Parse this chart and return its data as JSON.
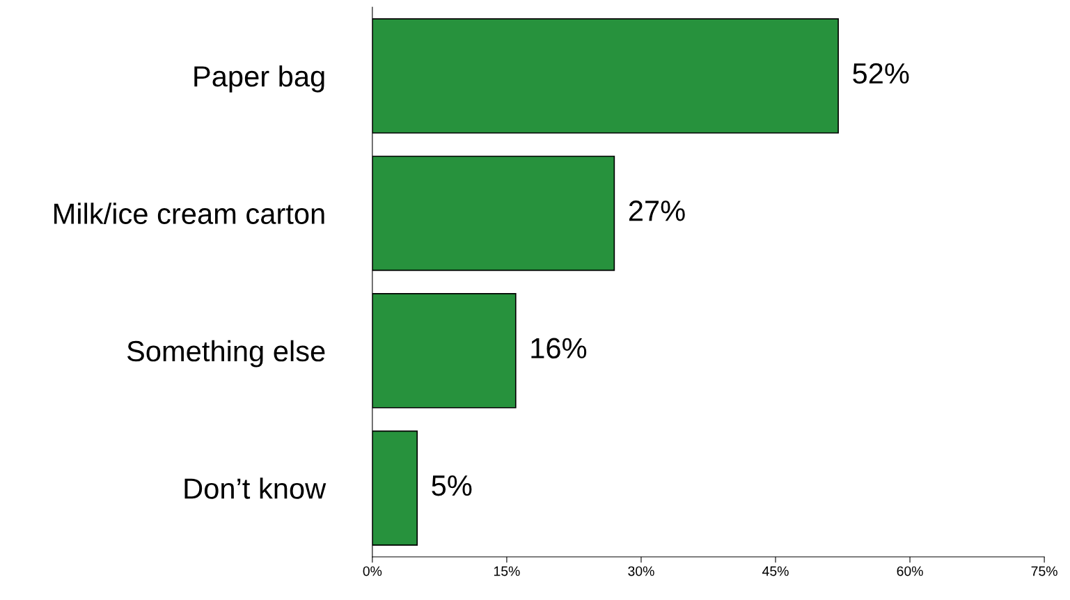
{
  "chart_data": {
    "type": "bar",
    "orientation": "horizontal",
    "categories": [
      "Paper bag",
      "Milk/ice cream carton",
      "Something else",
      "Don’t know"
    ],
    "values": [
      52,
      27,
      16,
      5
    ],
    "value_labels": [
      "52%",
      "27%",
      "16%",
      "5%"
    ],
    "color": "#27923d",
    "xlim": [
      0,
      75
    ],
    "xticks": [
      {
        "value": 0,
        "label": "0%"
      },
      {
        "value": 15,
        "label": "15%"
      },
      {
        "value": 30,
        "label": "30%"
      },
      {
        "value": 45,
        "label": "45%"
      },
      {
        "value": 60,
        "label": "60%"
      },
      {
        "value": 75,
        "label": "75%"
      }
    ],
    "grid": false,
    "legend": false
  }
}
